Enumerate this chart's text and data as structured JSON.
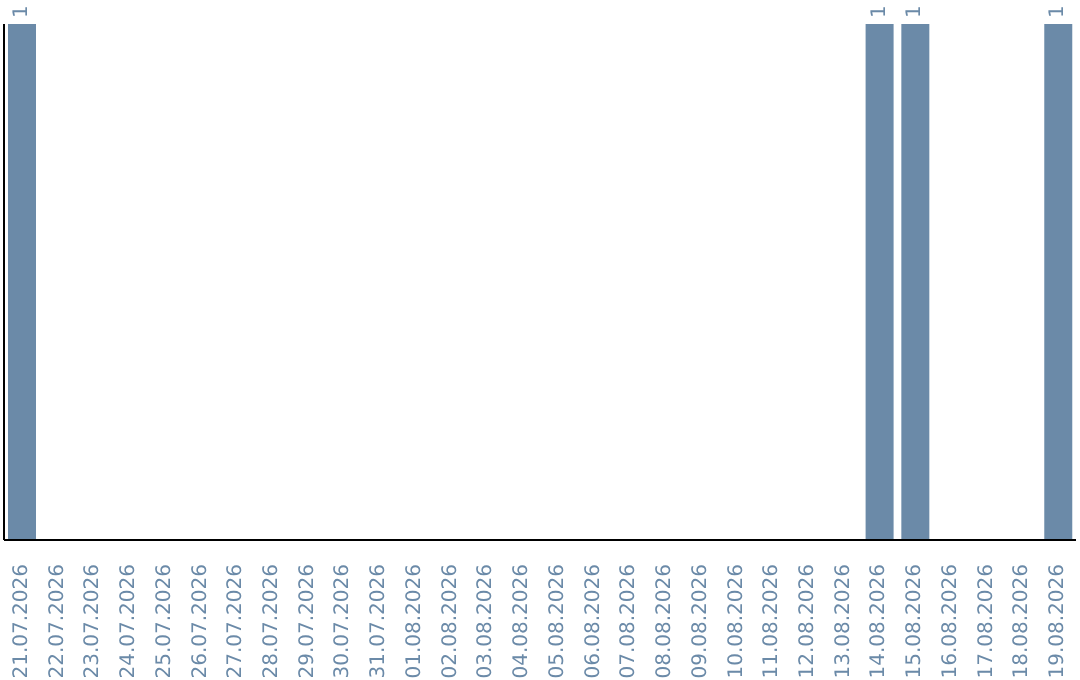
{
  "chart_data": {
    "type": "bar",
    "categories": [
      "21.07.2026",
      "22.07.2026",
      "23.07.2026",
      "24.07.2026",
      "25.07.2026",
      "26.07.2026",
      "27.07.2026",
      "28.07.2026",
      "29.07.2026",
      "30.07.2026",
      "31.07.2026",
      "01.08.2026",
      "02.08.2026",
      "03.08.2026",
      "04.08.2026",
      "05.08.2026",
      "06.08.2026",
      "07.08.2026",
      "08.08.2026",
      "09.08.2026",
      "10.08.2026",
      "11.08.2026",
      "12.08.2026",
      "13.08.2026",
      "14.08.2026",
      "15.08.2026",
      "16.08.2026",
      "17.08.2026",
      "18.08.2026",
      "19.08.2026"
    ],
    "values": [
      1,
      0,
      0,
      0,
      0,
      0,
      0,
      0,
      0,
      0,
      0,
      0,
      0,
      0,
      0,
      0,
      0,
      0,
      0,
      0,
      0,
      0,
      0,
      0,
      1,
      1,
      0,
      0,
      0,
      1
    ],
    "value_labels": [
      "1",
      null,
      null,
      null,
      null,
      null,
      null,
      null,
      null,
      null,
      null,
      null,
      null,
      null,
      null,
      null,
      null,
      null,
      null,
      null,
      null,
      null,
      null,
      null,
      "1",
      "1",
      null,
      null,
      null,
      "1"
    ],
    "color": "#6b8aa8",
    "tick_labels": "x"
  }
}
